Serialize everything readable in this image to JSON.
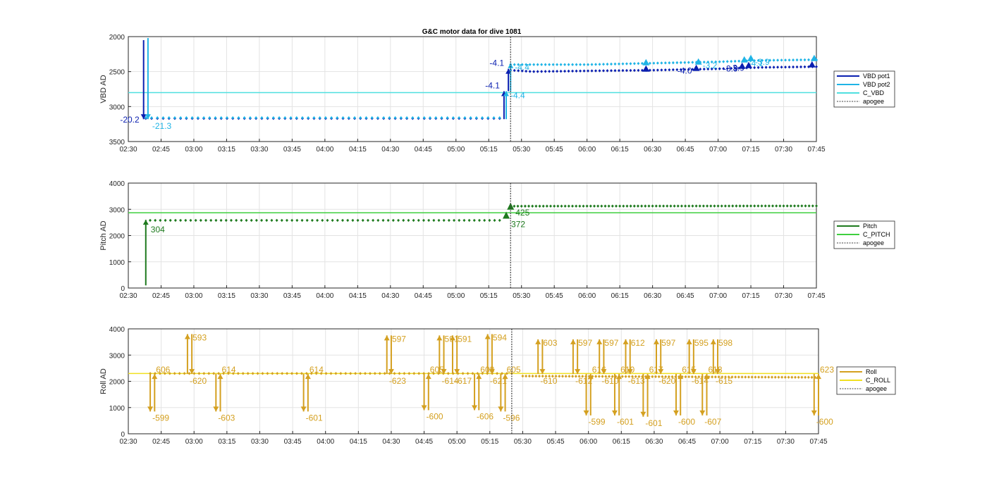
{
  "chart_data": [
    {
      "type": "line",
      "title": "G&C motor data for dive 1081",
      "xlabel": "",
      "ylabel": "VBD AD",
      "xticks": [
        "02:30",
        "02:45",
        "03:00",
        "03:15",
        "03:30",
        "03:45",
        "04:00",
        "04:15",
        "04:30",
        "04:45",
        "05:00",
        "05:15",
        "05:30",
        "05:45",
        "06:00",
        "06:15",
        "06:30",
        "06:45",
        "07:00",
        "07:15",
        "07:30",
        "07:45"
      ],
      "xlim": [
        "02:30",
        "07:45"
      ],
      "yticks": [
        2000,
        2500,
        3000,
        3500
      ],
      "ylim": [
        2000,
        3500
      ],
      "y_reversed": true,
      "grid": true,
      "legend_position": "right",
      "legend": [
        "VBD pot1",
        "VBD pot2",
        "C_VBD",
        "apogee"
      ],
      "colors": {
        "VBD pot1": "#0a1fb0",
        "VBD pot2": "#1fb4e6",
        "C_VBD": "#4fe0e0",
        "apogee": "#404040"
      },
      "apogee": "05:25",
      "reference_lines": [
        {
          "name": "C_VBD",
          "y": 2800
        }
      ],
      "series": [
        {
          "name": "VBD pot1",
          "points": [
            [
              "02:38",
              3170
            ],
            [
              "05:20",
              3170
            ],
            [
              "05:25",
              2480
            ],
            [
              "05:35",
              2500
            ],
            [
              "06:00",
              2490
            ],
            [
              "06:30",
              2480
            ],
            [
              "07:00",
              2460
            ],
            [
              "07:20",
              2440
            ],
            [
              "07:45",
              2430
            ]
          ]
        },
        {
          "name": "VBD pot2",
          "points": [
            [
              "02:38",
              3160
            ],
            [
              "05:20",
              3160
            ],
            [
              "05:25",
              2400
            ],
            [
              "05:35",
              2400
            ],
            [
              "06:00",
              2400
            ],
            [
              "06:30",
              2380
            ],
            [
              "07:00",
              2360
            ],
            [
              "07:20",
              2340
            ],
            [
              "07:45",
              2330
            ]
          ]
        }
      ],
      "events": [
        {
          "series": "VBD pot1",
          "x_start": "02:37",
          "x_end": "02:37",
          "from": 2050,
          "to": 3180,
          "label": "-20.2"
        },
        {
          "series": "VBD pot2",
          "x_start": "02:39",
          "x_end": "02:39",
          "from": 2020,
          "to": 3180,
          "label": "-21.3"
        },
        {
          "series": "VBD pot1",
          "x_start": "05:22",
          "x_end": "05:22",
          "from": 3180,
          "to": 2780,
          "label": "-4.1"
        },
        {
          "series": "VBD pot2",
          "x_start": "05:23",
          "x_end": "05:23",
          "from": 3180,
          "to": 2780,
          "label": "-4.4"
        },
        {
          "series": "VBD pot1",
          "x_start": "05:24",
          "x_end": "05:24",
          "from": 2780,
          "to": 2460,
          "label": "-4.1"
        },
        {
          "series": "VBD pot2",
          "x_start": "05:25",
          "x_end": "05:25",
          "from": 2780,
          "to": 2380,
          "label": "-4.4"
        },
        {
          "series": "VBD pot1",
          "x_start": "06:27",
          "x_end": "06:27",
          "from": 2490,
          "to": 2450,
          "label": ""
        },
        {
          "series": "VBD pot2",
          "x_start": "06:27",
          "x_end": "06:27",
          "from": 2400,
          "to": 2360,
          "label": ""
        },
        {
          "series": "VBD pot1",
          "x_start": "06:50",
          "x_end": "06:50",
          "from": 2470,
          "to": 2440,
          "label": "-4.0"
        },
        {
          "series": "VBD pot2",
          "x_start": "06:51",
          "x_end": "06:51",
          "from": 2380,
          "to": 2350,
          "label": "-3.2"
        },
        {
          "series": "VBD pot1",
          "x_start": "07:11",
          "x_end": "07:11",
          "from": 2450,
          "to": 2410,
          "label": "-3.9"
        },
        {
          "series": "VBD pot2",
          "x_start": "07:12",
          "x_end": "07:12",
          "from": 2350,
          "to": 2320,
          "label": "-4.1"
        },
        {
          "series": "VBD pot1",
          "x_start": "07:14",
          "x_end": "07:14",
          "from": 2440,
          "to": 2400,
          "label": "-3.9"
        },
        {
          "series": "VBD pot2",
          "x_start": "07:15",
          "x_end": "07:15",
          "from": 2340,
          "to": 2300,
          "label": "-3.9"
        },
        {
          "series": "VBD pot1",
          "x_start": "07:43",
          "x_end": "07:43",
          "from": 2430,
          "to": 2390,
          "label": ""
        },
        {
          "series": "VBD pot2",
          "x_start": "07:44",
          "x_end": "07:44",
          "from": 2330,
          "to": 2300,
          "label": ""
        }
      ]
    },
    {
      "type": "line",
      "xlabel": "",
      "ylabel": "Pitch AD",
      "xticks": [
        "02:30",
        "02:45",
        "03:00",
        "03:15",
        "03:30",
        "03:45",
        "04:00",
        "04:15",
        "04:30",
        "04:45",
        "05:00",
        "05:15",
        "05:30",
        "05:45",
        "06:00",
        "06:15",
        "06:30",
        "06:45",
        "07:00",
        "07:15",
        "07:30",
        "07:45"
      ],
      "xlim": [
        "02:30",
        "07:45"
      ],
      "yticks": [
        0,
        1000,
        2000,
        3000,
        4000
      ],
      "ylim": [
        0,
        4000
      ],
      "grid": true,
      "legend_position": "right",
      "legend": [
        "Pitch",
        "C_PITCH",
        "apogee"
      ],
      "colors": {
        "Pitch": "#1e7a1e",
        "C_PITCH": "#3fcf3f",
        "apogee": "#404040"
      },
      "apogee": "05:25",
      "reference_lines": [
        {
          "name": "C_PITCH",
          "y": 2870
        }
      ],
      "series": [
        {
          "name": "Pitch",
          "points": [
            [
              "02:40",
              2580
            ],
            [
              "05:20",
              2580
            ],
            [
              "05:25",
              3120
            ],
            [
              "07:45",
              3130
            ]
          ]
        }
      ],
      "events": [
        {
          "series": "Pitch",
          "x_start": "02:38",
          "x_end": "02:38",
          "from": 100,
          "to": 2600,
          "label": "304"
        },
        {
          "series": "Pitch",
          "x_start": "05:23",
          "x_end": "05:23",
          "from": 2600,
          "to": 2780,
          "label": "372"
        },
        {
          "series": "Pitch",
          "x_start": "05:25",
          "x_end": "05:25",
          "from": 2800,
          "to": 3120,
          "label": "425"
        }
      ]
    },
    {
      "type": "line",
      "xlabel": "",
      "ylabel": "Roll AD",
      "xticks": [
        "02:30",
        "02:45",
        "03:00",
        "03:15",
        "03:30",
        "03:45",
        "04:00",
        "04:15",
        "04:30",
        "04:45",
        "05:00",
        "05:15",
        "05:30",
        "05:45",
        "06:00",
        "06:15",
        "06:30",
        "06:45",
        "07:00",
        "07:15",
        "07:30",
        "07:45"
      ],
      "xlim": [
        "02:30",
        "07:45"
      ],
      "yticks": [
        0,
        1000,
        2000,
        3000,
        4000
      ],
      "ylim": [
        0,
        4000
      ],
      "grid": true,
      "legend_position": "right",
      "legend": [
        "Roll",
        "C_ROLL",
        "apogee"
      ],
      "colors": {
        "Roll": "#d4a020",
        "C_ROLL": "#f0e020",
        "apogee": "#404040"
      },
      "apogee": "05:25",
      "reference_lines": [
        {
          "name": "C_ROLL",
          "y": 2300
        }
      ],
      "series": [
        {
          "name": "Roll",
          "points": [
            [
              "02:40",
              2300
            ],
            [
              "05:25",
              2300
            ],
            [
              "05:30",
              2200
            ],
            [
              "07:45",
              2150
            ]
          ]
        }
      ],
      "events": [
        {
          "start": "02:40",
          "end": "02:42",
          "peak": 850,
          "up_label": "606",
          "down_label": "-599"
        },
        {
          "start": "02:57",
          "end": "02:59",
          "peak": 3800,
          "up_label": "593",
          "down_label": "-620"
        },
        {
          "start": "03:10",
          "end": "03:12",
          "peak": 850,
          "up_label": "614",
          "down_label": "-603"
        },
        {
          "start": "03:50",
          "end": "03:52",
          "peak": 850,
          "up_label": "614",
          "down_label": "-601"
        },
        {
          "start": "04:28",
          "end": "04:30",
          "peak": 3750,
          "up_label": "597",
          "down_label": "-623"
        },
        {
          "start": "04:45",
          "end": "04:47",
          "peak": 900,
          "up_label": "605",
          "down_label": "-600"
        },
        {
          "start": "04:52",
          "end": "04:54",
          "peak": 3750,
          "up_label": "591",
          "down_label": "-614"
        },
        {
          "start": "04:58",
          "end": "05:00",
          "peak": 3750,
          "up_label": "591",
          "down_label": "-617"
        },
        {
          "start": "05:08",
          "end": "05:10",
          "peak": 900,
          "up_label": "608",
          "down_label": "-606"
        },
        {
          "start": "05:14",
          "end": "05:16",
          "peak": 3800,
          "up_label": "594",
          "down_label": "-621"
        },
        {
          "start": "05:20",
          "end": "05:22",
          "peak": 850,
          "up_label": "605",
          "down_label": "-596"
        },
        {
          "start": "05:37",
          "end": "05:39",
          "peak": 3600,
          "up_label": "603",
          "down_label": "-610"
        },
        {
          "start": "05:53",
          "end": "05:55",
          "peak": 3600,
          "up_label": "597",
          "down_label": "-612"
        },
        {
          "start": "05:59",
          "end": "06:01",
          "peak": 700,
          "up_label": "616",
          "down_label": "-599"
        },
        {
          "start": "06:05",
          "end": "06:07",
          "peak": 3600,
          "up_label": "597",
          "down_label": "-610"
        },
        {
          "start": "06:12",
          "end": "06:14",
          "peak": 700,
          "up_label": "610",
          "down_label": "-601"
        },
        {
          "start": "06:17",
          "end": "06:19",
          "peak": 3600,
          "up_label": "612",
          "down_label": "-613"
        },
        {
          "start": "06:25",
          "end": "06:27",
          "peak": 650,
          "up_label": "617",
          "down_label": "-601"
        },
        {
          "start": "06:31",
          "end": "06:33",
          "peak": 3600,
          "up_label": "597",
          "down_label": "-620"
        },
        {
          "start": "06:40",
          "end": "06:42",
          "peak": 700,
          "up_label": "615",
          "down_label": "-600"
        },
        {
          "start": "06:46",
          "end": "06:48",
          "peak": 3600,
          "up_label": "595",
          "down_label": "-614"
        },
        {
          "start": "06:52",
          "end": "06:54",
          "peak": 700,
          "up_label": "618",
          "down_label": "-607"
        },
        {
          "start": "06:57",
          "end": "06:59",
          "peak": 3600,
          "up_label": "598",
          "down_label": "-615"
        },
        {
          "start": "07:43",
          "end": "07:45",
          "peak": 700,
          "up_label": "623",
          "down_label": "-600"
        }
      ]
    }
  ]
}
